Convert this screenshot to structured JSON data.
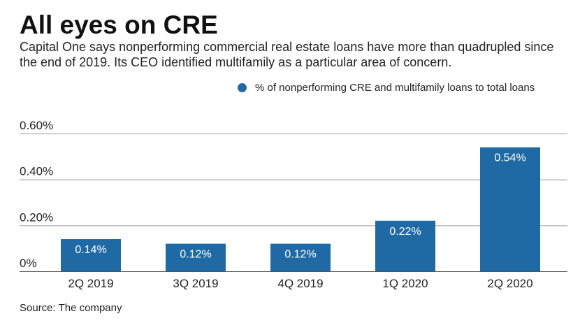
{
  "header": {
    "title": "All eyes on CRE",
    "subtitle": "Capital One says nonperforming commercial real estate loans have more than quadrupled since the end of 2019. Its CEO identified multifamily as a particular area of concern."
  },
  "footer": {
    "source": "Source: The company"
  },
  "colors": {
    "bar": "#1f6aa5",
    "grid": "#9a9a9a",
    "bar_label": "#ffffff"
  },
  "chart_data": {
    "type": "bar",
    "categories": [
      "2Q 2019",
      "3Q 2019",
      "4Q 2019",
      "1Q 2020",
      "2Q 2020"
    ],
    "series": [
      {
        "name": "% of nonperforming CRE and multifamily loans to total loans",
        "values": [
          0.14,
          0.12,
          0.12,
          0.22,
          0.54
        ]
      }
    ],
    "data_labels": [
      "0.14%",
      "0.12%",
      "0.12%",
      "0.22%",
      "0.54%"
    ],
    "y_ticks": [
      0,
      0.2,
      0.4,
      0.6
    ],
    "y_tick_labels": [
      "0%",
      "0.20%",
      "0.40%",
      "0.60%"
    ],
    "ylim": [
      0,
      0.6
    ],
    "grid": true,
    "legend_position": "top-right"
  }
}
